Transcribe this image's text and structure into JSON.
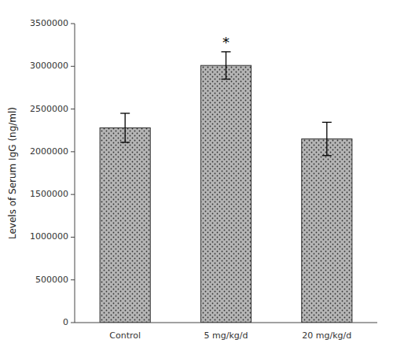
{
  "chart_data": {
    "type": "bar",
    "categories": [
      "Control",
      "5 mg/kg/d",
      "20 mg/kg/d"
    ],
    "values": [
      2280000,
      3010000,
      2150000
    ],
    "errors": [
      170000,
      160000,
      195000
    ],
    "significance_labels": [
      null,
      "*",
      null
    ],
    "color": "#b5b5b5",
    "ylabel": "Levels of Serum IgG (ng/ml)",
    "ylim": [
      0,
      3500000
    ],
    "yticks": [
      0,
      500000,
      1000000,
      1500000,
      2000000,
      2500000,
      3000000,
      3500000
    ],
    "grid": false
  }
}
